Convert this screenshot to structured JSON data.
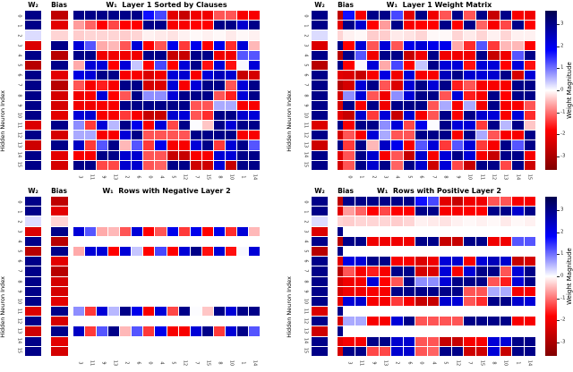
{
  "chart_data": {
    "type": "heatmap",
    "value_range": [
      -3.6,
      3.6
    ],
    "grid": false,
    "colormap_stops": [
      {
        "pos": 0.0,
        "color": "#00004d"
      },
      {
        "pos": 0.25,
        "color": "#0000ff"
      },
      {
        "pos": 0.5,
        "color": "#ffffff"
      },
      {
        "pos": 0.75,
        "color": "#ff0000"
      },
      {
        "pos": 1.0,
        "color": "#800000"
      }
    ],
    "colorbar": {
      "label": "Weight Magnitude",
      "ticks": [
        3,
        2,
        1,
        0,
        -1,
        -2,
        -3
      ]
    },
    "shared": {
      "y_axis_label": "Hidden Neuron Index",
      "y_ticks": [
        "0",
        "1",
        "2",
        "3",
        "4",
        "5",
        "6",
        "7",
        "8",
        "9",
        "10",
        "11",
        "12",
        "13",
        "14",
        "15"
      ],
      "w2_header": "W₂",
      "bias_header": "Bias",
      "w2": [
        3,
        3,
        0.25,
        -2.3,
        3,
        -2.8,
        3,
        3,
        3,
        3,
        3,
        -2.3,
        3,
        -2.5,
        3,
        3
      ],
      "bias": [
        -2.7,
        -2.2,
        -0.3,
        3,
        -2.8,
        3,
        -2.2,
        -2.8,
        -2.4,
        -2.4,
        -2.2,
        3,
        -2.4,
        3,
        -2.2,
        -2.4
      ]
    },
    "panels": [
      {
        "title": "W₁  Layer 1 Sorted by Clauses",
        "x_labels": [
          "3",
          "11",
          "9",
          "13",
          "2",
          "6",
          "0",
          "4",
          "5",
          "12",
          "7",
          "15",
          "8",
          "10",
          "1",
          "14"
        ],
        "has_colorbar": false,
        "w1": [
          [
            3,
            3,
            3,
            3,
            3,
            3,
            1.7,
            1.3,
            -2.2,
            -2.6,
            -2,
            -2,
            -1.2,
            -1.2,
            -1.9,
            -1.9
          ],
          [
            -0.7,
            -1.1,
            -1.8,
            -1.3,
            -1.8,
            -1.8,
            3,
            3,
            -1.9,
            -1.9,
            -1.8,
            -1.8,
            3,
            3,
            2.3,
            3
          ],
          [
            -0.35,
            -0.3,
            -0.3,
            -0.3,
            -0.35,
            -0.3,
            -0.1,
            -0.15,
            -0.2,
            -0.1,
            -0.05,
            -0.1,
            -0.05,
            -0.15,
            -0.05,
            -0.1
          ],
          [
            2.2,
            1.2,
            -0.6,
            -0.5,
            -1.2,
            2.2,
            -1.8,
            -1.2,
            2,
            -1.4,
            2,
            -1.8,
            2,
            -1.5,
            2.2,
            -0.5
          ],
          [
            3,
            3,
            -2,
            -2,
            -2,
            -2,
            3,
            3,
            -2.6,
            -2.6,
            3,
            3,
            -2,
            -2,
            1.2,
            1.2
          ],
          [
            -0.6,
            2.2,
            2.2,
            -1.8,
            2.2,
            0.4,
            -1.8,
            1.3,
            -1.8,
            2.2,
            3,
            -1.7,
            2.2,
            -1.7,
            0.05,
            2.2
          ],
          [
            2.1,
            2.2,
            3,
            3,
            -1.9,
            -1.9,
            -2.3,
            -2,
            2.2,
            2.3,
            -1.9,
            2.2,
            2.5,
            2.3,
            -2.6,
            -2.4
          ],
          [
            -1.2,
            -1.9,
            -1.6,
            -1.9,
            3,
            3,
            -2.4,
            -2.3,
            2.2,
            -1.9,
            2.2,
            3,
            3,
            -1.2,
            2.2,
            3
          ],
          [
            -2,
            -1.9,
            2.2,
            -1.8,
            -1.2,
            3,
            0.8,
            0.8,
            2.2,
            3,
            3,
            3,
            -1.2,
            -1.6,
            2.2,
            3
          ],
          [
            -2,
            -2,
            -1.9,
            -1.9,
            3,
            3,
            3,
            3,
            3,
            3,
            -1.2,
            -1.2,
            0.6,
            0.6,
            -1.9,
            -1.9
          ],
          [
            2.2,
            2.3,
            -1.9,
            -1.9,
            -1.4,
            -1.9,
            -2.6,
            -2.6,
            2.3,
            2.2,
            -1.2,
            -1.5,
            3,
            3,
            2.3,
            2.2
          ],
          [
            0.8,
            -1.4,
            2.2,
            0.5,
            3,
            2,
            -1.9,
            2.2,
            -1.3,
            3,
            0.02,
            -0.4,
            3,
            2.2,
            3,
            3
          ],
          [
            0.6,
            0.6,
            -1.9,
            -1.9,
            2.2,
            3,
            -1.2,
            -1.2,
            -1.2,
            -1.2,
            3,
            3,
            3,
            3,
            -1.9,
            -1.9
          ],
          [
            2.4,
            -1.4,
            1.2,
            3,
            -0.5,
            1.2,
            -1.4,
            2,
            -1.9,
            -1.9,
            2.2,
            3,
            -1.4,
            2.2,
            3,
            1.2
          ],
          [
            -1.9,
            -1.9,
            3,
            3,
            2.3,
            2.3,
            -1.2,
            -1.2,
            -2.6,
            -2.6,
            -1.9,
            -1.9,
            2.2,
            2.2,
            3,
            3
          ],
          [
            3,
            3,
            -1.3,
            -1.3,
            2.3,
            2.3,
            -1.2,
            -1.1,
            3,
            3,
            -2.5,
            -2.5,
            2.2,
            -2.6,
            3,
            3
          ]
        ]
      },
      {
        "title": "W₁  Layer 1 Weight Matrix",
        "x_labels": [
          "0",
          "1",
          "2",
          "3",
          "4",
          "5",
          "6",
          "7",
          "8",
          "9",
          "10",
          "11",
          "12",
          "13",
          "14",
          "15"
        ],
        "has_colorbar": true,
        "w1": [
          [
            1.7,
            -1.9,
            3,
            3,
            1.3,
            -2.2,
            3,
            -2,
            -1.2,
            3,
            -1.2,
            3,
            -2.6,
            3,
            -1.9,
            -2
          ],
          [
            3,
            2.3,
            -1.8,
            -0.7,
            3,
            -1.9,
            -1.8,
            -1.8,
            3,
            -1.8,
            3,
            -1.1,
            -1.9,
            -1.3,
            3,
            -1.8
          ],
          [
            -0.1,
            -0.05,
            -0.35,
            -0.35,
            -0.15,
            -0.2,
            -0.3,
            -0.05,
            -0.05,
            -0.3,
            -0.15,
            -0.3,
            -0.1,
            -0.3,
            -0.1,
            -0.1
          ],
          [
            -1.8,
            2.2,
            -1.2,
            2.2,
            -1.2,
            2,
            2.2,
            2,
            2,
            -0.6,
            -1.5,
            1.2,
            -1.4,
            -0.5,
            -0.5,
            -1.8
          ],
          [
            3,
            1.2,
            -2,
            3,
            3,
            -2.6,
            -2,
            3,
            -2,
            -2,
            -2,
            3,
            -2.6,
            -2,
            1.2,
            3
          ],
          [
            -1.8,
            0.05,
            2.2,
            -0.6,
            1.3,
            -1.8,
            0.4,
            3,
            2.2,
            2.2,
            -1.7,
            2.2,
            2.2,
            -1.8,
            2.2,
            -1.7
          ],
          [
            -2.3,
            -2.6,
            -1.9,
            2.1,
            -2,
            2.2,
            -1.9,
            -1.9,
            2.5,
            3,
            2.3,
            2.2,
            2.3,
            3,
            -2.4,
            2.2
          ],
          [
            -2.4,
            2.2,
            3,
            -1.2,
            -2.3,
            2.2,
            3,
            2.2,
            3,
            -1.6,
            -1.2,
            -1.9,
            -1.9,
            -1.9,
            3,
            3
          ],
          [
            0.8,
            2.2,
            -1.2,
            -2,
            0.8,
            2.2,
            3,
            3,
            -1.2,
            2.2,
            -1.6,
            -1.9,
            3,
            -1.8,
            3,
            3
          ],
          [
            3,
            -1.9,
            3,
            -2,
            3,
            3,
            3,
            -1.2,
            0.6,
            -1.9,
            0.6,
            -2,
            3,
            -1.9,
            -1.9,
            -1.2
          ],
          [
            -2.6,
            2.3,
            -1.4,
            2.2,
            -2.6,
            2.3,
            -1.9,
            -1.2,
            3,
            -1.9,
            3,
            2.3,
            2.2,
            -1.9,
            2.2,
            -1.5
          ],
          [
            -1.9,
            3,
            3,
            0.8,
            2.2,
            -1.3,
            2,
            0.02,
            3,
            2.2,
            2.2,
            -1.4,
            3,
            0.5,
            3,
            -0.4
          ],
          [
            -1.2,
            -1.9,
            2.2,
            0.6,
            -1.2,
            -1.2,
            3,
            3,
            3,
            -1.9,
            3,
            0.6,
            -1.2,
            -1.9,
            -1.9,
            3
          ],
          [
            -1.4,
            3,
            -0.5,
            2.4,
            2,
            -1.9,
            1.2,
            2.2,
            -1.4,
            1.2,
            2.2,
            -1.4,
            -1.9,
            3,
            1.2,
            3
          ],
          [
            -1.2,
            3,
            2.3,
            -1.9,
            -1.2,
            -2.6,
            2.3,
            -1.9,
            2.2,
            3,
            2.2,
            -1.9,
            -2.6,
            3,
            3,
            -1.9
          ],
          [
            -1.2,
            3,
            2.3,
            3,
            -1.1,
            3,
            2.3,
            -2.5,
            2.2,
            -1.3,
            -2.6,
            3,
            3,
            -1.3,
            3,
            -2.5
          ]
        ]
      },
      {
        "title": "W₁  Rows with Negative Layer 2",
        "x_labels": [
          "3",
          "11",
          "9",
          "13",
          "2",
          "6",
          "0",
          "4",
          "5",
          "12",
          "7",
          "15",
          "8",
          "10",
          "1",
          "14"
        ],
        "has_colorbar": false,
        "w1": [
          null,
          null,
          null,
          [
            2.2,
            1.2,
            -0.6,
            -0.5,
            -1.2,
            2.2,
            -1.8,
            -1.2,
            2,
            -1.4,
            2,
            -1.8,
            2,
            -1.5,
            2.2,
            -0.5
          ],
          null,
          [
            -0.6,
            2.2,
            2.2,
            -1.8,
            2.2,
            0.4,
            -1.8,
            1.3,
            -1.8,
            2.2,
            3,
            -1.7,
            2.2,
            -1.7,
            0.05,
            2.2
          ],
          null,
          null,
          null,
          null,
          null,
          [
            0.8,
            -1.4,
            2.2,
            0.5,
            3,
            2,
            -1.9,
            2.2,
            -1.3,
            3,
            0.02,
            -0.4,
            3,
            2.2,
            3,
            3
          ],
          null,
          [
            2.4,
            -1.4,
            1.2,
            3,
            -0.5,
            1.2,
            -1.4,
            2,
            -1.9,
            -1.9,
            2.2,
            3,
            -1.4,
            2.2,
            3,
            1.2
          ],
          null,
          null
        ]
      },
      {
        "title": "W₁  Rows with Positive Layer 2",
        "x_labels": [
          "3",
          "11",
          "9",
          "13",
          "2",
          "6",
          "0",
          "4",
          "5",
          "12",
          "7",
          "15",
          "8",
          "10",
          "1",
          "14"
        ],
        "has_colorbar": true,
        "w1": [
          [
            3,
            3,
            3,
            3,
            3,
            3,
            1.7,
            1.3,
            -2.2,
            -2.6,
            -2,
            -2,
            -1.2,
            -1.2,
            -1.9,
            -1.9
          ],
          [
            -0.7,
            -1.1,
            -1.8,
            -1.3,
            -1.8,
            -1.8,
            3,
            3,
            -1.9,
            -1.9,
            -1.8,
            -1.8,
            3,
            3,
            2.3,
            3
          ],
          [
            -0.35,
            -0.3,
            -0.3,
            -0.3,
            -0.35,
            -0.3,
            -0.1,
            -0.15,
            -0.2,
            -0.1,
            -0.05,
            -0.1,
            -0.05,
            -0.15,
            -0.05,
            -0.1
          ],
          null,
          [
            3,
            3,
            -2,
            -2,
            -2,
            -2,
            3,
            3,
            -2.6,
            -2.6,
            3,
            3,
            -2,
            -2,
            1.2,
            1.2
          ],
          null,
          [
            2.1,
            2.2,
            3,
            3,
            -1.9,
            -1.9,
            -2.3,
            -2,
            2.2,
            2.3,
            -1.9,
            2.2,
            2.5,
            2.3,
            -2.6,
            -2.4
          ],
          [
            -1.2,
            -1.9,
            -1.6,
            -1.9,
            3,
            3,
            -2.4,
            -2.3,
            2.2,
            -1.9,
            2.2,
            3,
            3,
            -1.2,
            2.2,
            3
          ],
          [
            -2,
            -1.9,
            2.2,
            -1.8,
            -1.2,
            3,
            0.8,
            0.8,
            2.2,
            3,
            3,
            3,
            -1.2,
            -1.6,
            2.2,
            3
          ],
          [
            -2,
            -2,
            -1.9,
            -1.9,
            3,
            3,
            3,
            3,
            3,
            3,
            -1.2,
            -1.2,
            0.6,
            0.6,
            -1.9,
            -1.9
          ],
          [
            2.2,
            2.3,
            -1.9,
            -1.9,
            -1.4,
            -1.9,
            -2.6,
            -2.6,
            2.3,
            2.2,
            -1.2,
            -1.5,
            3,
            3,
            2.3,
            2.2
          ],
          null,
          [
            0.6,
            0.6,
            -1.9,
            -1.9,
            2.2,
            3,
            -1.2,
            -1.2,
            -1.2,
            -1.2,
            3,
            3,
            3,
            3,
            -1.9,
            -1.9
          ],
          null,
          [
            -1.9,
            -1.9,
            3,
            3,
            2.3,
            2.3,
            -1.2,
            -1.2,
            -2.6,
            -2.6,
            -1.9,
            -1.9,
            2.2,
            2.2,
            3,
            3
          ],
          [
            3,
            3,
            -1.3,
            -1.3,
            2.3,
            2.3,
            -1.2,
            -1.1,
            3,
            3,
            -2.5,
            -2.5,
            2.2,
            -2.6,
            3,
            3
          ]
        ]
      }
    ]
  }
}
